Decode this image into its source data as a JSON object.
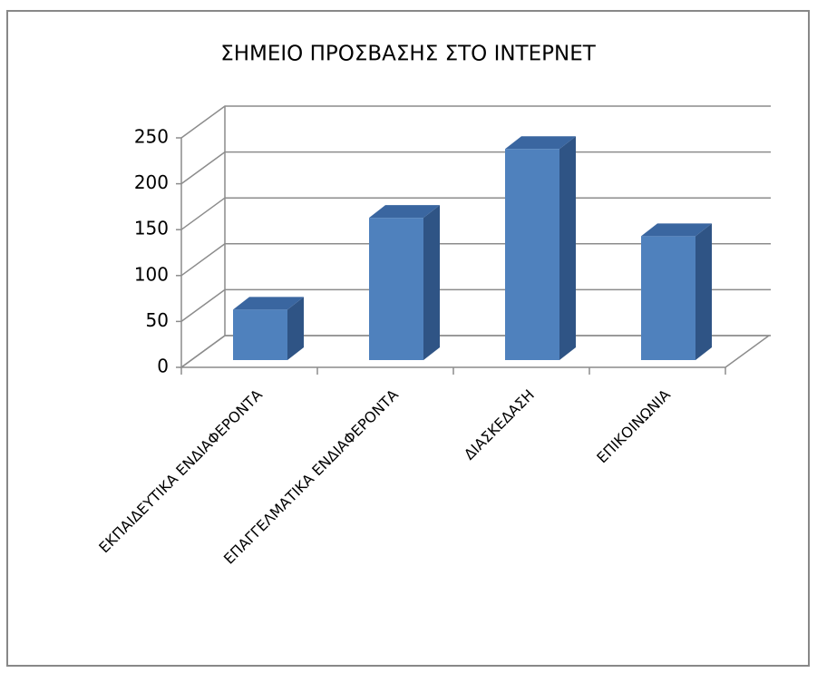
{
  "chart_data": {
    "type": "bar3d",
    "title": "ΣΗΜΕΙΟ ΠΡΟΣΒΑΣΗΣ ΣΤΟ ΙΝΤΕΡΝΕΤ",
    "categories": [
      "ΕΚΠΑΙΔΕΥΤΙΚΑ ΕΝΔΙΑΦΕΡΟΝΤΑ",
      "ΕΠΑΓΓΕΛΜΑΤΙΚΑ ΕΝΔΙΑΦΕΡΟΝΤΑ",
      "ΔΙΑΣΚΕΔΑΣΗ",
      "ΕΠΙΚΟΙΝΩΝΙΑ"
    ],
    "values": [
      55,
      155,
      230,
      135
    ],
    "color": "#4f81bd",
    "ylim": [
      0,
      250
    ],
    "yticks": [
      0,
      50,
      100,
      150,
      200,
      250
    ],
    "grid": true
  }
}
